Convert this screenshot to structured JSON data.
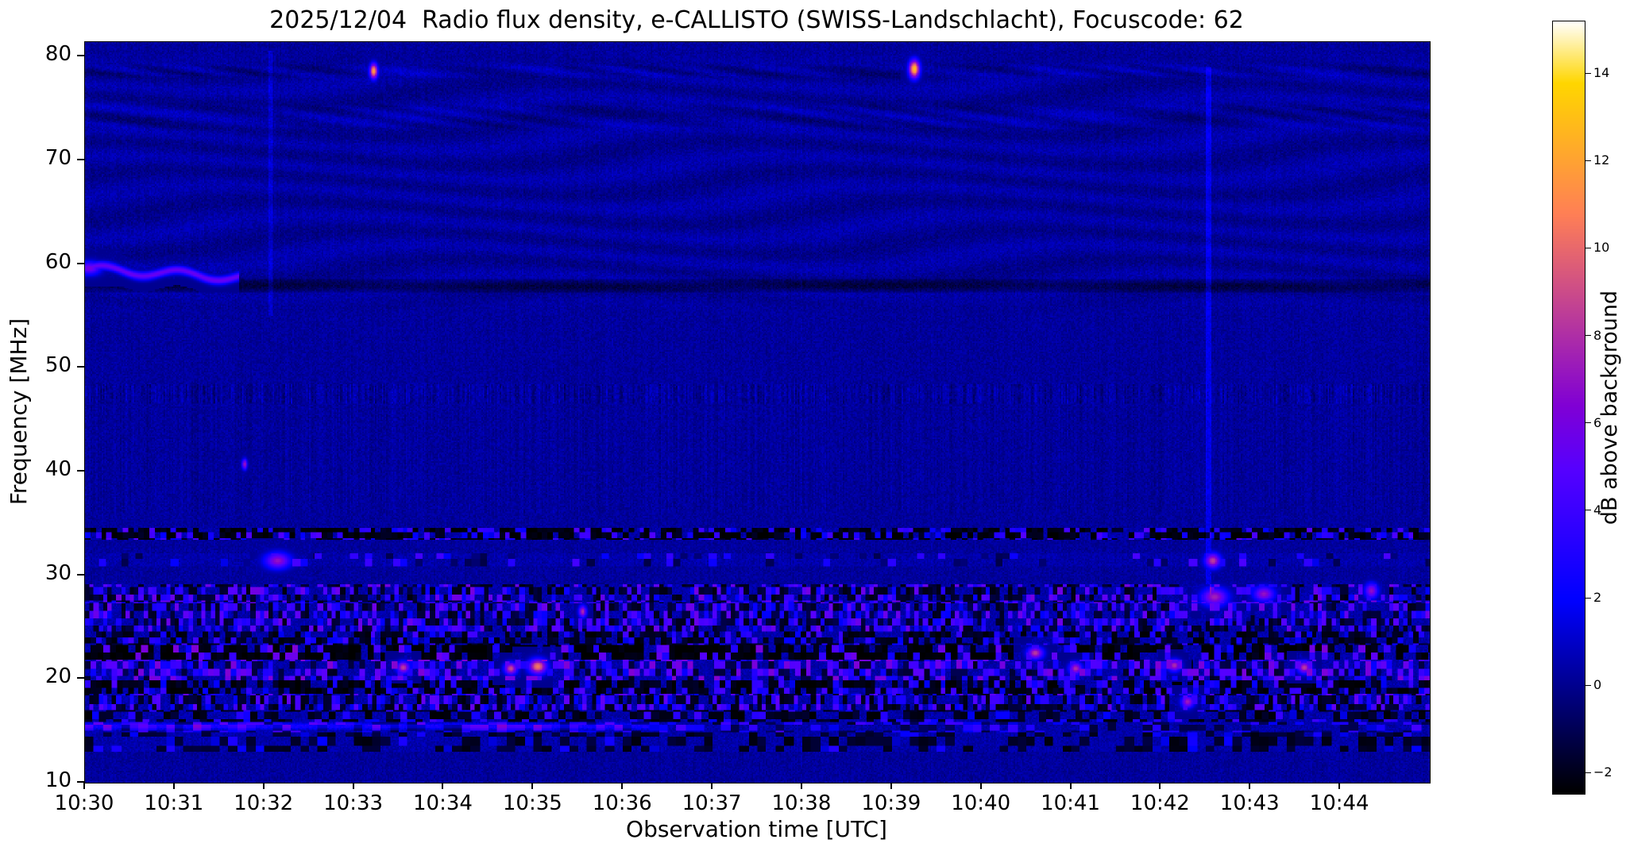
{
  "chart_data": {
    "type": "heatmap",
    "subtype": "radio-spectrogram",
    "title": "2025/12/04  Radio flux density, e-CALLISTO (SWISS-Landschlacht), Focuscode: 62",
    "xlabel": "Observation time [UTC]",
    "ylabel": "Frequency [MHz]",
    "x_ticks": [
      "10:30",
      "10:31",
      "10:32",
      "10:33",
      "10:34",
      "10:35",
      "10:36",
      "10:37",
      "10:38",
      "10:39",
      "10:40",
      "10:41",
      "10:42",
      "10:43",
      "10:44"
    ],
    "x_range_minutes": [
      0,
      15
    ],
    "y_ticks": [
      10,
      20,
      30,
      40,
      50,
      60,
      70,
      80
    ],
    "ylim": [
      10,
      81.4
    ],
    "grid": false,
    "legend": "none",
    "colorbar": {
      "label": "dB above background",
      "ticks": [
        -2,
        0,
        2,
        4,
        6,
        8,
        10,
        12,
        14
      ],
      "clim": [
        -2.5,
        15.2
      ],
      "colormap": "gnuplot2"
    },
    "background_level_db": 0.2,
    "bands": [
      {
        "f0": 77.8,
        "f1": 79.4,
        "type": "ripple",
        "amp": 0.55
      },
      {
        "f0": 72.8,
        "f1": 75.6,
        "type": "ripple",
        "amp": 0.4
      },
      {
        "f0": 55.0,
        "f1": 80.8,
        "type": "waves",
        "amp": 0.35
      },
      {
        "f0": 57.2,
        "f1": 58.6,
        "type": "dark",
        "amp": 1.3
      },
      {
        "f0": 46.6,
        "f1": 48.4,
        "type": "stripes",
        "amp": 0.8
      },
      {
        "f0": 36.0,
        "f1": 46.2,
        "type": "stripes",
        "amp": 0.28
      },
      {
        "f0": 33.4,
        "f1": 34.6,
        "type": "rfi",
        "dark": 0.55,
        "bright": 0.25,
        "vneg": -2.2,
        "vpos": 3.4,
        "dt": 0.06,
        "df": 0.6
      },
      {
        "f0": 30.8,
        "f1": 32.2,
        "type": "rfi",
        "dark": 0.1,
        "bright": 0.12,
        "vneg": -0.8,
        "vpos": 3.2,
        "dt": 0.08,
        "df": 0.7
      },
      {
        "f0": 27.4,
        "f1": 29.2,
        "type": "rfi",
        "dark": 0.35,
        "bright": 0.3,
        "vneg": -1.8,
        "vpos": 4.2,
        "dt": 0.05,
        "df": 0.6
      },
      {
        "f0": 24.6,
        "f1": 27.4,
        "type": "rfi",
        "dark": 0.3,
        "bright": 0.35,
        "vneg": -1.6,
        "vpos": 4.0,
        "dt": 0.05,
        "df": 0.7
      },
      {
        "f0": 23.3,
        "f1": 24.6,
        "type": "rfi",
        "dark": 0.5,
        "bright": 0.15,
        "vneg": -2.0,
        "vpos": 3.0,
        "dt": 0.06,
        "df": 0.65
      },
      {
        "f0": 21.8,
        "f1": 23.3,
        "type": "rfi",
        "dark": 0.62,
        "bright": 0.2,
        "vneg": -2.4,
        "vpos": 4.5,
        "dt": 0.07,
        "df": 0.75
      },
      {
        "f0": 19.8,
        "f1": 21.8,
        "type": "rfi",
        "dark": 0.2,
        "bright": 0.45,
        "vneg": -1.5,
        "vpos": 4.5,
        "dt": 0.06,
        "df": 0.7
      },
      {
        "f0": 18.6,
        "f1": 19.8,
        "type": "rfi",
        "dark": 0.55,
        "bright": 0.2,
        "vneg": -2.2,
        "vpos": 3.2,
        "dt": 0.06,
        "df": 0.6
      },
      {
        "f0": 17.0,
        "f1": 18.6,
        "type": "rfi",
        "dark": 0.35,
        "bright": 0.35,
        "vneg": -1.8,
        "vpos": 3.8,
        "dt": 0.05,
        "df": 0.8
      },
      {
        "f0": 15.8,
        "f1": 17.0,
        "type": "rfi",
        "dark": 0.45,
        "bright": 0.15,
        "vneg": -2.0,
        "vpos": 2.8,
        "dt": 0.08,
        "df": 0.6
      },
      {
        "f0": 14.8,
        "f1": 15.8,
        "type": "rfi",
        "dark": 0.2,
        "bright": 0.3,
        "vneg": -1.2,
        "vpos": 3.0,
        "dt": 0.1,
        "df": 0.5
      },
      {
        "f0": 13.0,
        "f1": 14.8,
        "type": "rfi",
        "dark": 0.4,
        "bright": 0.1,
        "vneg": -1.8,
        "vpos": 2.2,
        "dt": 0.1,
        "df": 0.9
      }
    ],
    "hlines": [
      {
        "f": 15.45,
        "t0": 0.0,
        "t1": 6.3,
        "dv": 2.2,
        "w": 0.22
      }
    ],
    "vlines": [
      {
        "t": 12.53,
        "f0": 28,
        "f1": 79,
        "dv": 1.4,
        "w": 0.03
      },
      {
        "t": 2.07,
        "f0": 55,
        "f1": 80.5,
        "dv": 0.9,
        "w": 0.025
      }
    ],
    "driftline": {
      "t0": 0.0,
      "t1": 1.72,
      "f_start": 59.55,
      "slope": -0.5,
      "wiggle_amp": 0.4,
      "wiggle_freq": 7.5,
      "width": 0.28,
      "v": 5.5
    },
    "spots": [
      {
        "t": 0.05,
        "f": 59.6,
        "st": 0.09,
        "sf": 0.45,
        "v": 6.0
      },
      {
        "t": 3.22,
        "f": 78.6,
        "st": 0.03,
        "sf": 0.5,
        "v": 12.0
      },
      {
        "t": 9.25,
        "f": 78.8,
        "st": 0.04,
        "sf": 0.6,
        "v": 13.0
      },
      {
        "t": 1.78,
        "f": 40.7,
        "st": 0.02,
        "sf": 0.35,
        "v": 7.5
      },
      {
        "t": 2.15,
        "f": 31.4,
        "st": 0.1,
        "sf": 0.55,
        "v": 7.0
      },
      {
        "t": 12.58,
        "f": 31.4,
        "st": 0.06,
        "sf": 0.5,
        "v": 8.5
      },
      {
        "t": 3.55,
        "f": 21.1,
        "st": 0.05,
        "sf": 0.4,
        "v": 8.5
      },
      {
        "t": 4.75,
        "f": 21.0,
        "st": 0.05,
        "sf": 0.4,
        "v": 9.0
      },
      {
        "t": 5.05,
        "f": 21.2,
        "st": 0.07,
        "sf": 0.5,
        "v": 10.5
      },
      {
        "t": 5.55,
        "f": 26.5,
        "st": 0.03,
        "sf": 0.4,
        "v": 8.0
      },
      {
        "t": 10.6,
        "f": 22.5,
        "st": 0.06,
        "sf": 0.4,
        "v": 8.5
      },
      {
        "t": 11.05,
        "f": 21.0,
        "st": 0.05,
        "sf": 0.4,
        "v": 8.0
      },
      {
        "t": 12.15,
        "f": 21.3,
        "st": 0.05,
        "sf": 0.4,
        "v": 8.0
      },
      {
        "t": 12.3,
        "f": 17.8,
        "st": 0.05,
        "sf": 0.4,
        "v": 7.5
      },
      {
        "t": 12.6,
        "f": 27.9,
        "st": 0.1,
        "sf": 0.6,
        "v": 7.5
      },
      {
        "t": 13.15,
        "f": 28.2,
        "st": 0.08,
        "sf": 0.5,
        "v": 7.0
      },
      {
        "t": 13.6,
        "f": 21.1,
        "st": 0.05,
        "sf": 0.4,
        "v": 8.5
      },
      {
        "t": 14.35,
        "f": 28.5,
        "st": 0.05,
        "sf": 0.5,
        "v": 7.0
      }
    ],
    "notable_features": [
      "Wavy drifting emission line near 58-60 MHz from 10:30:00 to about 10:31:45",
      "Bright orange point at ~78.5 MHz near 10:33:12 and at ~79 MHz near 10:39:15",
      "Persistent dark interference lane at ~34 MHz across the full record",
      "Strong blotchy RFI bands between ~13 and 32 MHz; brightest orange spots near 21 MHz around 10:35",
      "Faint vertical sweep across 30-79 MHz at about 10:42:30",
      "Faint wave-like ripples above 55 MHz, including bands near 74 and 78.5 MHz",
      "Dark quiet lane near 57.5-58.5 MHz"
    ]
  }
}
